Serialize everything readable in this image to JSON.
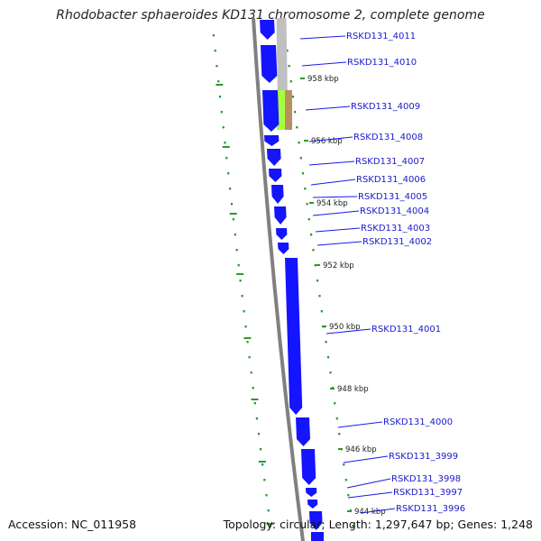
{
  "header": {
    "title": "Rhodobacter sphaeroides KD131 chromosome 2, complete genome"
  },
  "footer": {
    "accession": "Accession: NC_011958",
    "summary": "Topology: circular; Length: 1,297,647 bp; Genes: 1,248"
  },
  "colors": {
    "gene_forward": "#1414ff",
    "label_line": "#1a1ae6",
    "label_text": "#1a1acc",
    "backbone": "#808080",
    "track_grey": "#c0c0c0",
    "dots": "#2a9a2a",
    "highlight_green": "#a8ff40",
    "highlight_brown": "#b89060"
  },
  "scale_labels": [
    "958 kbp",
    "956 kbp",
    "954 kbp",
    "952 kbp",
    "950 kbp",
    "948 kbp",
    "946 kbp",
    "944 kbp"
  ],
  "genes": [
    {
      "label": "RSKD131_4011"
    },
    {
      "label": "RSKD131_4010"
    },
    {
      "label": "RSKD131_4009"
    },
    {
      "label": "RSKD131_4008"
    },
    {
      "label": "RSKD131_4007"
    },
    {
      "label": "RSKD131_4006"
    },
    {
      "label": "RSKD131_4005"
    },
    {
      "label": "RSKD131_4004"
    },
    {
      "label": "RSKD131_4003"
    },
    {
      "label": "RSKD131_4002"
    },
    {
      "label": "RSKD131_4001"
    },
    {
      "label": "RSKD131_4000"
    },
    {
      "label": "RSKD131_3999"
    },
    {
      "label": "RSKD131_3998"
    },
    {
      "label": "RSKD131_3997"
    },
    {
      "label": "RSKD131_3996"
    }
  ]
}
